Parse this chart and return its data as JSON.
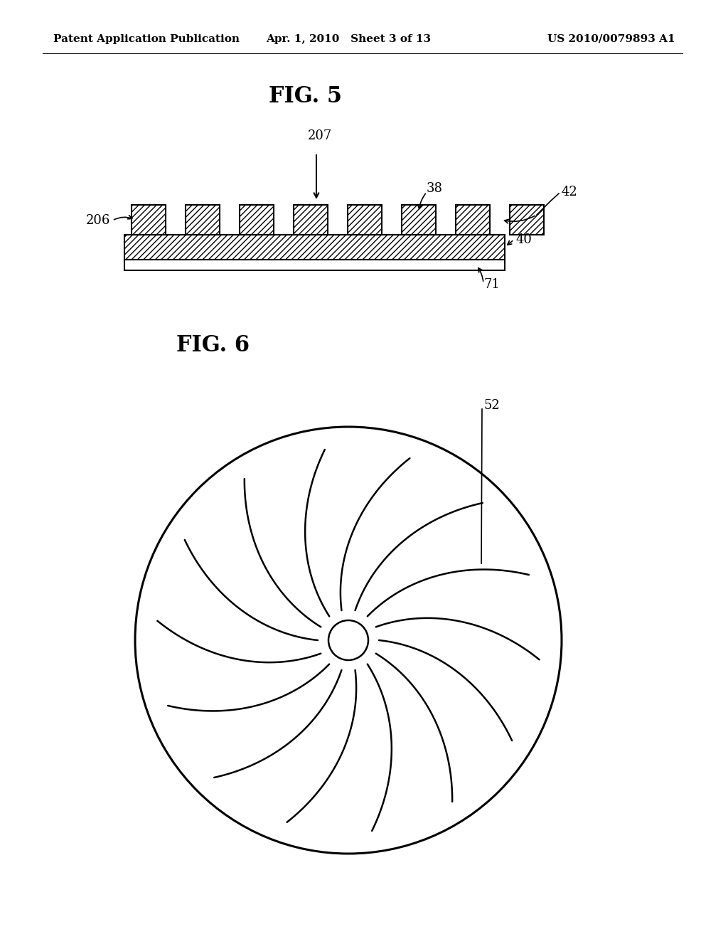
{
  "background_color": "#ffffff",
  "header_left": "Patent Application Publication",
  "header_center": "Apr. 1, 2010   Sheet 3 of 13",
  "header_right": "US 2010/0079893 A1",
  "header_fontsize": 11,
  "fig5_title": "FIG. 5",
  "fig6_title": "FIG. 6",
  "fig5_title_fontsize": 22,
  "fig6_title_fontsize": 22,
  "line_color": "#000000",
  "label_fontsize": 13
}
